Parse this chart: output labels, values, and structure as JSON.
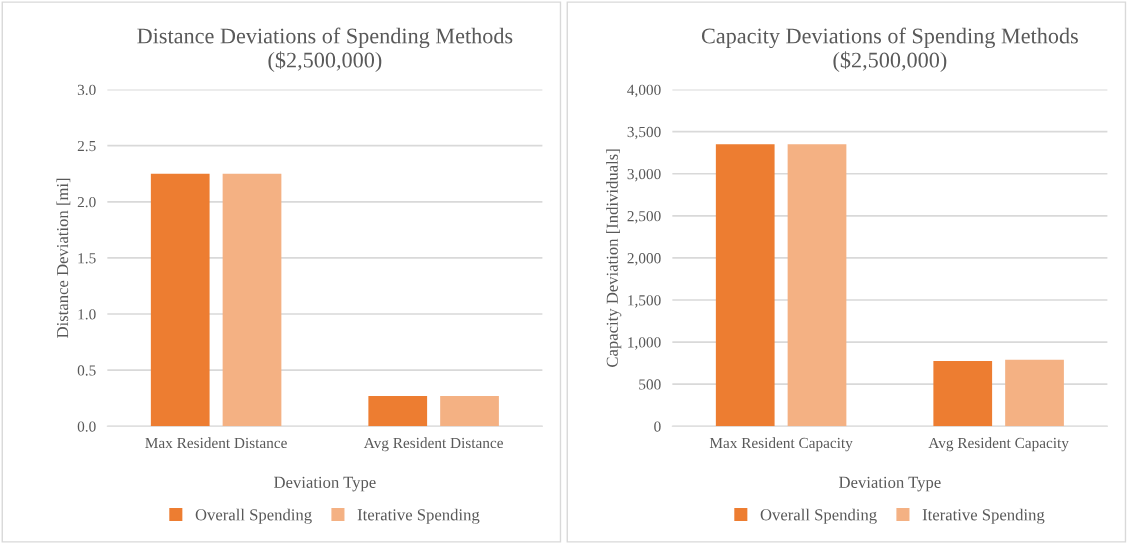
{
  "chart_data": [
    {
      "type": "bar",
      "title": "Distance Deviations of Spending Methods\n($2,500,000)",
      "xlabel": "Deviation Type",
      "ylabel": "Distance Deviation [mi]",
      "categories": [
        "Max Resident Distance",
        "Avg Resident Distance"
      ],
      "series": [
        {
          "name": "Overall Spending",
          "color": "#ed7d31",
          "values": [
            2.25,
            0.27
          ]
        },
        {
          "name": "Iterative Spending",
          "color": "#f4b183",
          "values": [
            2.25,
            0.27
          ]
        }
      ],
      "ylim": [
        0,
        3
      ],
      "yticks": [
        {
          "value": 0,
          "label": "0.0"
        },
        {
          "value": 0.5,
          "label": "0.5"
        },
        {
          "value": 1,
          "label": "1.0"
        },
        {
          "value": 1.5,
          "label": "1.5"
        },
        {
          "value": 2,
          "label": "2.0"
        },
        {
          "value": 2.5,
          "label": "2.5"
        },
        {
          "value": 3,
          "label": "3.0"
        }
      ],
      "grid": "y",
      "legend": "bottom"
    },
    {
      "type": "bar",
      "title": "Capacity Deviations of Spending Methods\n($2,500,000)",
      "xlabel": "Deviation Type",
      "ylabel": "Capacity Deviation [Individuals]",
      "categories": [
        "Max Resident Capacity",
        "Avg Resident Capacity"
      ],
      "series": [
        {
          "name": "Overall Spending",
          "color": "#ed7d31",
          "values": [
            3350,
            775
          ]
        },
        {
          "name": "Iterative Spending",
          "color": "#f4b183",
          "values": [
            3350,
            790
          ]
        }
      ],
      "ylim": [
        0,
        4000
      ],
      "yticks": [
        0,
        {
          "value": 500,
          "label": "500"
        },
        {
          "value": 1000,
          "label": "1,000"
        },
        {
          "value": 1500,
          "label": "1,500"
        },
        {
          "value": 2000,
          "label": "2,000"
        },
        {
          "value": 2500,
          "label": "2,500"
        },
        {
          "value": 3000,
          "label": "3,000"
        },
        {
          "value": 3500,
          "label": "3,500"
        },
        {
          "value": 4000,
          "label": "4,000"
        }
      ],
      "grid": "y",
      "legend": "bottom"
    }
  ]
}
